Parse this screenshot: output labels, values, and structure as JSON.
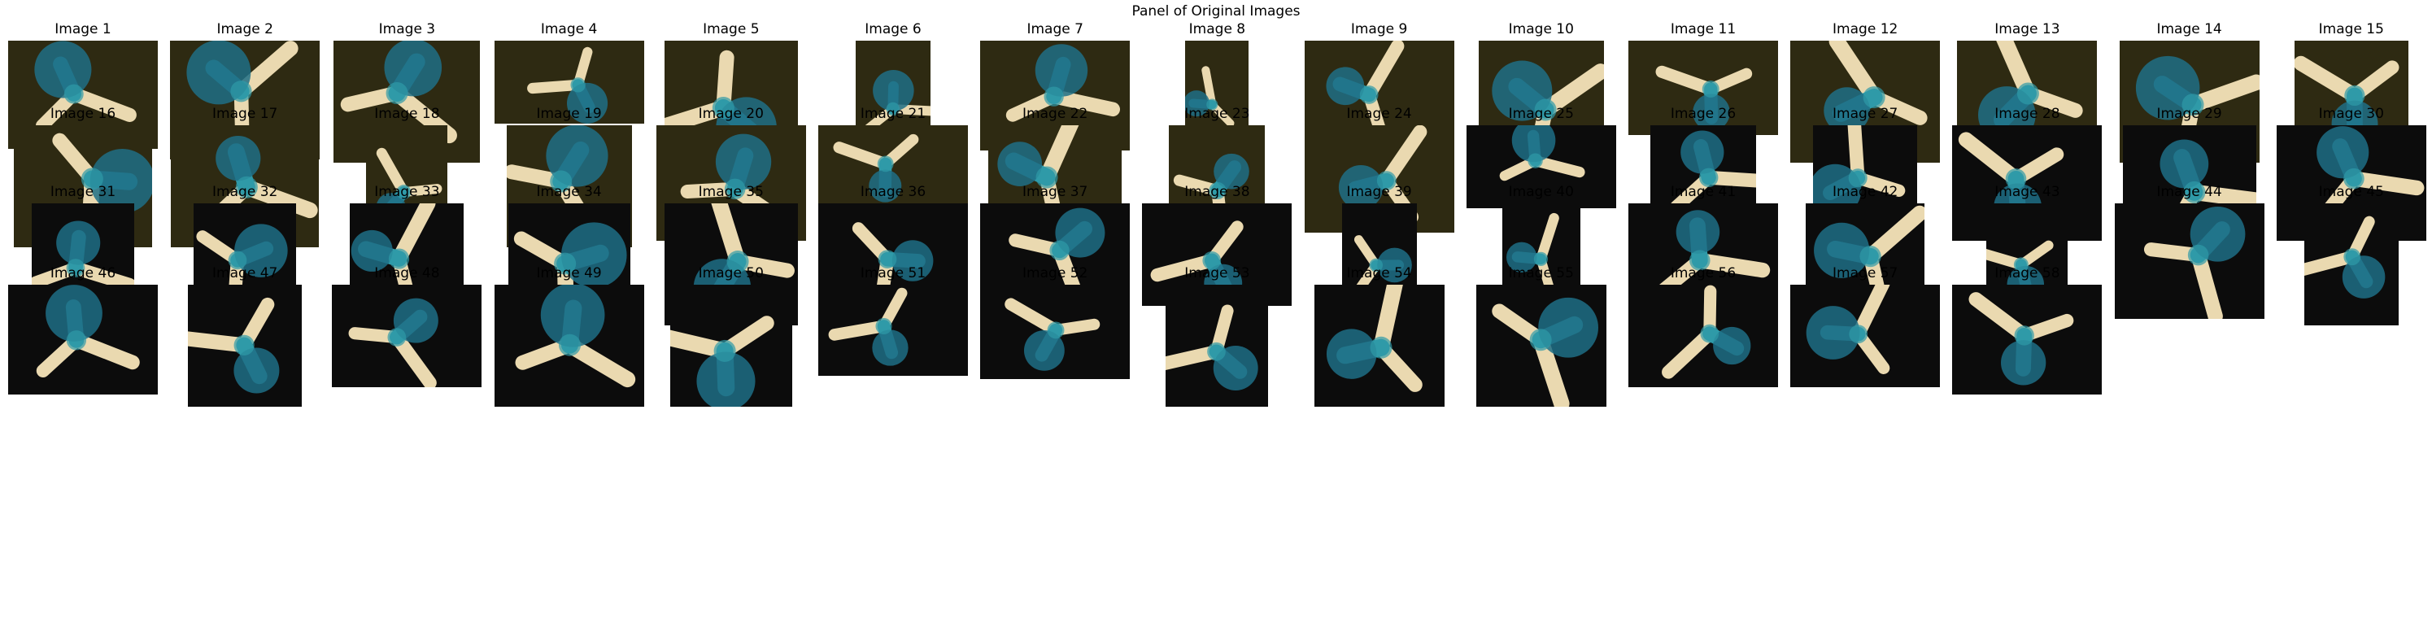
{
  "panel": {
    "title": "Panel of Original Images"
  },
  "images": [
    {
      "label": "Image 1",
      "bg": "olive"
    },
    {
      "label": "Image 2",
      "bg": "olive"
    },
    {
      "label": "Image 3",
      "bg": "olive"
    },
    {
      "label": "Image 4",
      "bg": "olive"
    },
    {
      "label": "Image 5",
      "bg": "olive"
    },
    {
      "label": "Image 6",
      "bg": "olive"
    },
    {
      "label": "Image 7",
      "bg": "olive"
    },
    {
      "label": "Image 8",
      "bg": "olive"
    },
    {
      "label": "Image 9",
      "bg": "olive"
    },
    {
      "label": "Image 10",
      "bg": "olive"
    },
    {
      "label": "Image 11",
      "bg": "olive"
    },
    {
      "label": "Image 12",
      "bg": "olive"
    },
    {
      "label": "Image 13",
      "bg": "olive"
    },
    {
      "label": "Image 14",
      "bg": "olive"
    },
    {
      "label": "Image 15",
      "bg": "olive"
    },
    {
      "label": "Image 16",
      "bg": "olive"
    },
    {
      "label": "Image 17",
      "bg": "olive"
    },
    {
      "label": "Image 18",
      "bg": "olive"
    },
    {
      "label": "Image 19",
      "bg": "olive"
    },
    {
      "label": "Image 20",
      "bg": "olive"
    },
    {
      "label": "Image 21",
      "bg": "olive"
    },
    {
      "label": "Image 22",
      "bg": "olive"
    },
    {
      "label": "Image 23",
      "bg": "olive"
    },
    {
      "label": "Image 24",
      "bg": "olive"
    },
    {
      "label": "Image 25",
      "bg": "black"
    },
    {
      "label": "Image 26",
      "bg": "black"
    },
    {
      "label": "Image 27",
      "bg": "black"
    },
    {
      "label": "Image 28",
      "bg": "black"
    },
    {
      "label": "Image 29",
      "bg": "black"
    },
    {
      "label": "Image 30",
      "bg": "black"
    },
    {
      "label": "Image 31",
      "bg": "black"
    },
    {
      "label": "Image 32",
      "bg": "black"
    },
    {
      "label": "Image 33",
      "bg": "black"
    },
    {
      "label": "Image 34",
      "bg": "black"
    },
    {
      "label": "Image 35",
      "bg": "black"
    },
    {
      "label": "Image 36",
      "bg": "black"
    },
    {
      "label": "Image 37",
      "bg": "black"
    },
    {
      "label": "Image 38",
      "bg": "black"
    },
    {
      "label": "Image 39",
      "bg": "black"
    },
    {
      "label": "Image 40",
      "bg": "black"
    },
    {
      "label": "Image 41",
      "bg": "black"
    },
    {
      "label": "Image 42",
      "bg": "black"
    },
    {
      "label": "Image 43",
      "bg": "black"
    },
    {
      "label": "Image 44",
      "bg": "black"
    },
    {
      "label": "Image 45",
      "bg": "black"
    },
    {
      "label": "Image 46",
      "bg": "black"
    },
    {
      "label": "Image 47",
      "bg": "black"
    },
    {
      "label": "Image 48",
      "bg": "black"
    },
    {
      "label": "Image 49",
      "bg": "black"
    },
    {
      "label": "Image 50",
      "bg": "black"
    },
    {
      "label": "Image 51",
      "bg": "black"
    },
    {
      "label": "Image 52",
      "bg": "black"
    },
    {
      "label": "Image 53",
      "bg": "black"
    },
    {
      "label": "Image 54",
      "bg": "black"
    },
    {
      "label": "Image 55",
      "bg": "black"
    },
    {
      "label": "Image 56",
      "bg": "black"
    },
    {
      "label": "Image 57",
      "bg": "black"
    },
    {
      "label": "Image 58",
      "bg": "black"
    }
  ],
  "colors": {
    "olive_bg": "#2e2a12",
    "black_bg": "#0c0c0c",
    "seedling_pale": "#ead9b0",
    "stain_blue": "#1f6f86",
    "stain_teal": "#2f9aa8"
  }
}
